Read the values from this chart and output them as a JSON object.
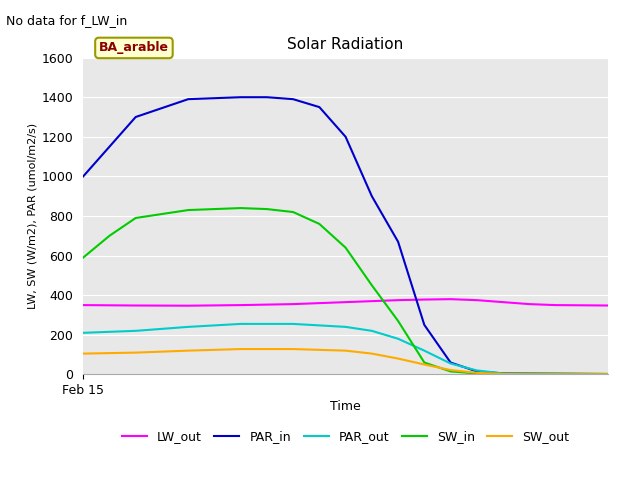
{
  "title": "Solar Radiation",
  "top_left_text": "No data for f_LW_in",
  "xlabel": "Time",
  "ylabel": "LW, SW (W/m2), PAR (umol/m2/s)",
  "xlim": [
    0,
    1.0
  ],
  "ylim": [
    0,
    1600
  ],
  "yticks": [
    0,
    200,
    400,
    600,
    800,
    1000,
    1200,
    1400,
    1600
  ],
  "xticklabels": [
    "Feb 15"
  ],
  "annotation_box": "BA_arable",
  "annotation_box_text_color": "#8B0000",
  "annotation_box_face_color": "#FFFFD0",
  "annotation_box_edge_color": "#999900",
  "plot_bg_color": "#e8e8e8",
  "fig_bg_color": "#ffffff",
  "legend_entries": [
    "LW_out",
    "PAR_in",
    "PAR_out",
    "SW_in",
    "SW_out"
  ],
  "line_colors": {
    "LW_out": "#ff00ff",
    "PAR_in": "#0000cc",
    "PAR_out": "#00cccc",
    "SW_in": "#00cc00",
    "SW_out": "#ffaa00"
  },
  "series": {
    "LW_out": {
      "x": [
        0.0,
        0.1,
        0.2,
        0.3,
        0.4,
        0.5,
        0.55,
        0.6,
        0.65,
        0.7,
        0.75,
        0.8,
        0.85,
        0.9,
        1.0
      ],
      "y": [
        350,
        348,
        347,
        350,
        355,
        365,
        370,
        375,
        378,
        380,
        375,
        365,
        355,
        350,
        348
      ]
    },
    "PAR_in": {
      "x": [
        0.0,
        0.05,
        0.1,
        0.2,
        0.3,
        0.35,
        0.4,
        0.45,
        0.5,
        0.55,
        0.6,
        0.65,
        0.7,
        0.75,
        0.8,
        1.0
      ],
      "y": [
        1000,
        1150,
        1300,
        1390,
        1400,
        1400,
        1390,
        1350,
        1200,
        900,
        670,
        250,
        60,
        15,
        5,
        2
      ]
    },
    "PAR_out": {
      "x": [
        0.0,
        0.1,
        0.2,
        0.3,
        0.4,
        0.5,
        0.55,
        0.6,
        0.65,
        0.7,
        0.75,
        0.8,
        1.0
      ],
      "y": [
        210,
        220,
        240,
        255,
        255,
        240,
        220,
        180,
        120,
        55,
        20,
        5,
        2
      ]
    },
    "SW_in": {
      "x": [
        0.0,
        0.05,
        0.1,
        0.2,
        0.3,
        0.35,
        0.4,
        0.45,
        0.5,
        0.55,
        0.6,
        0.65,
        0.7,
        0.75,
        0.8,
        1.0
      ],
      "y": [
        590,
        700,
        790,
        830,
        840,
        835,
        820,
        760,
        640,
        450,
        270,
        60,
        15,
        5,
        2,
        2
      ]
    },
    "SW_out": {
      "x": [
        0.0,
        0.1,
        0.2,
        0.3,
        0.4,
        0.5,
        0.55,
        0.6,
        0.65,
        0.7,
        0.75,
        0.8,
        0.85,
        0.9,
        1.0
      ],
      "y": [
        105,
        110,
        120,
        128,
        128,
        120,
        105,
        80,
        50,
        22,
        8,
        2,
        1,
        1,
        1
      ]
    }
  }
}
